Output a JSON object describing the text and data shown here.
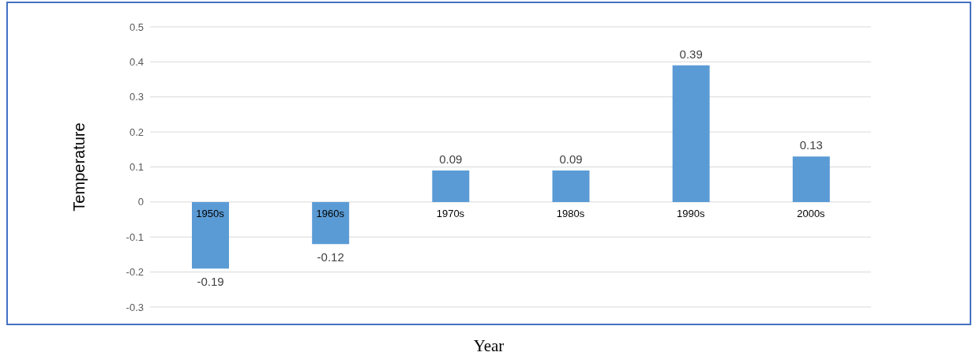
{
  "chart_data": {
    "type": "bar",
    "xlabel": "Year",
    "ylabel": "Temperature",
    "categories": [
      "1950s",
      "1960s",
      "1970s",
      "1980s",
      "1990s",
      "2000s"
    ],
    "values": [
      -0.19,
      -0.12,
      0.09,
      0.09,
      0.39,
      0.13
    ],
    "color": "#5b9bd5",
    "ylim": [
      -0.3,
      0.5
    ],
    "yticks": [
      -0.3,
      -0.2,
      -0.1,
      0,
      0.1,
      0.2,
      0.3,
      0.4,
      0.5
    ],
    "grid": "y",
    "data_labels": true
  }
}
